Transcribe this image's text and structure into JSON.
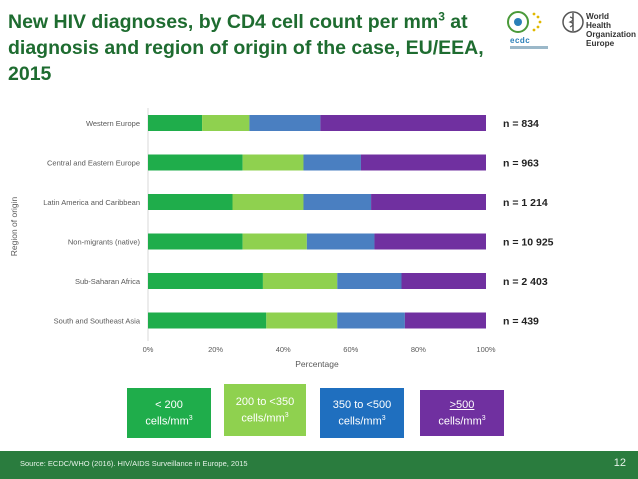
{
  "slide": {
    "title_line1_pre": "New HIV diagnoses, by CD4 cell count per mm",
    "title_line1_sup": "3",
    "title_line1_post": " at",
    "title_line2": "diagnosis and region of origin of the case, EU/EEA,",
    "title_line3": "2015",
    "ecdc_logo_text": "ecdc",
    "who_line1": "World Health",
    "who_line2": "Organization",
    "who_line3": "Europe",
    "source": "Source: ECDC/WHO (2016). HIV/AIDS Surveillance in Europe, 2015",
    "page_number": "12"
  },
  "legend": [
    {
      "pre": "< 200",
      "line2": "cells/mm",
      "sup": "3",
      "color": "#1fad4b"
    },
    {
      "pre": "200 to <350",
      "line2": "cells/mm",
      "sup": "3",
      "color": "#8fd14f"
    },
    {
      "pre": "350 to <500",
      "line2": "cells/mm",
      "sup": "3",
      "color": "#1f6fbf"
    },
    {
      "pre": ">500",
      "line2": "cells/mm",
      "sup": "3",
      "color": "#7030a0"
    }
  ],
  "chart_data": {
    "type": "bar",
    "orientation": "horizontal",
    "stacked": true,
    "xlabel": "Percentage",
    "ylabel": "Region of origin",
    "xlim": [
      0,
      100
    ],
    "xticks": [
      "0%",
      "20%",
      "40%",
      "60%",
      "80%",
      "100%"
    ],
    "categories": [
      "Western Europe",
      "Central and Eastern Europe",
      "Latin America and Caribbean",
      "Non-migrants (native)",
      "Sub-Saharan Africa",
      "South and Southeast Asia"
    ],
    "n_labels": [
      "n = 834",
      "n = 963",
      "n = 1 214",
      "n = 10 925",
      "n = 2 403",
      "n = 439"
    ],
    "series": [
      {
        "name": "< 200 cells/mm3",
        "color": "#1fad4b",
        "values": [
          16,
          28,
          25,
          28,
          34,
          35
        ]
      },
      {
        "name": "200 to <350 cells/mm3",
        "color": "#8fd14f",
        "values": [
          14,
          18,
          21,
          19,
          22,
          21
        ]
      },
      {
        "name": "350 to <500 cells/mm3",
        "color": "#4a7fc1",
        "values": [
          21,
          17,
          20,
          20,
          19,
          20
        ]
      },
      {
        "name": ">500 cells/mm3",
        "color": "#7030a0",
        "values": [
          49,
          37,
          34,
          33,
          25,
          24
        ]
      }
    ]
  }
}
